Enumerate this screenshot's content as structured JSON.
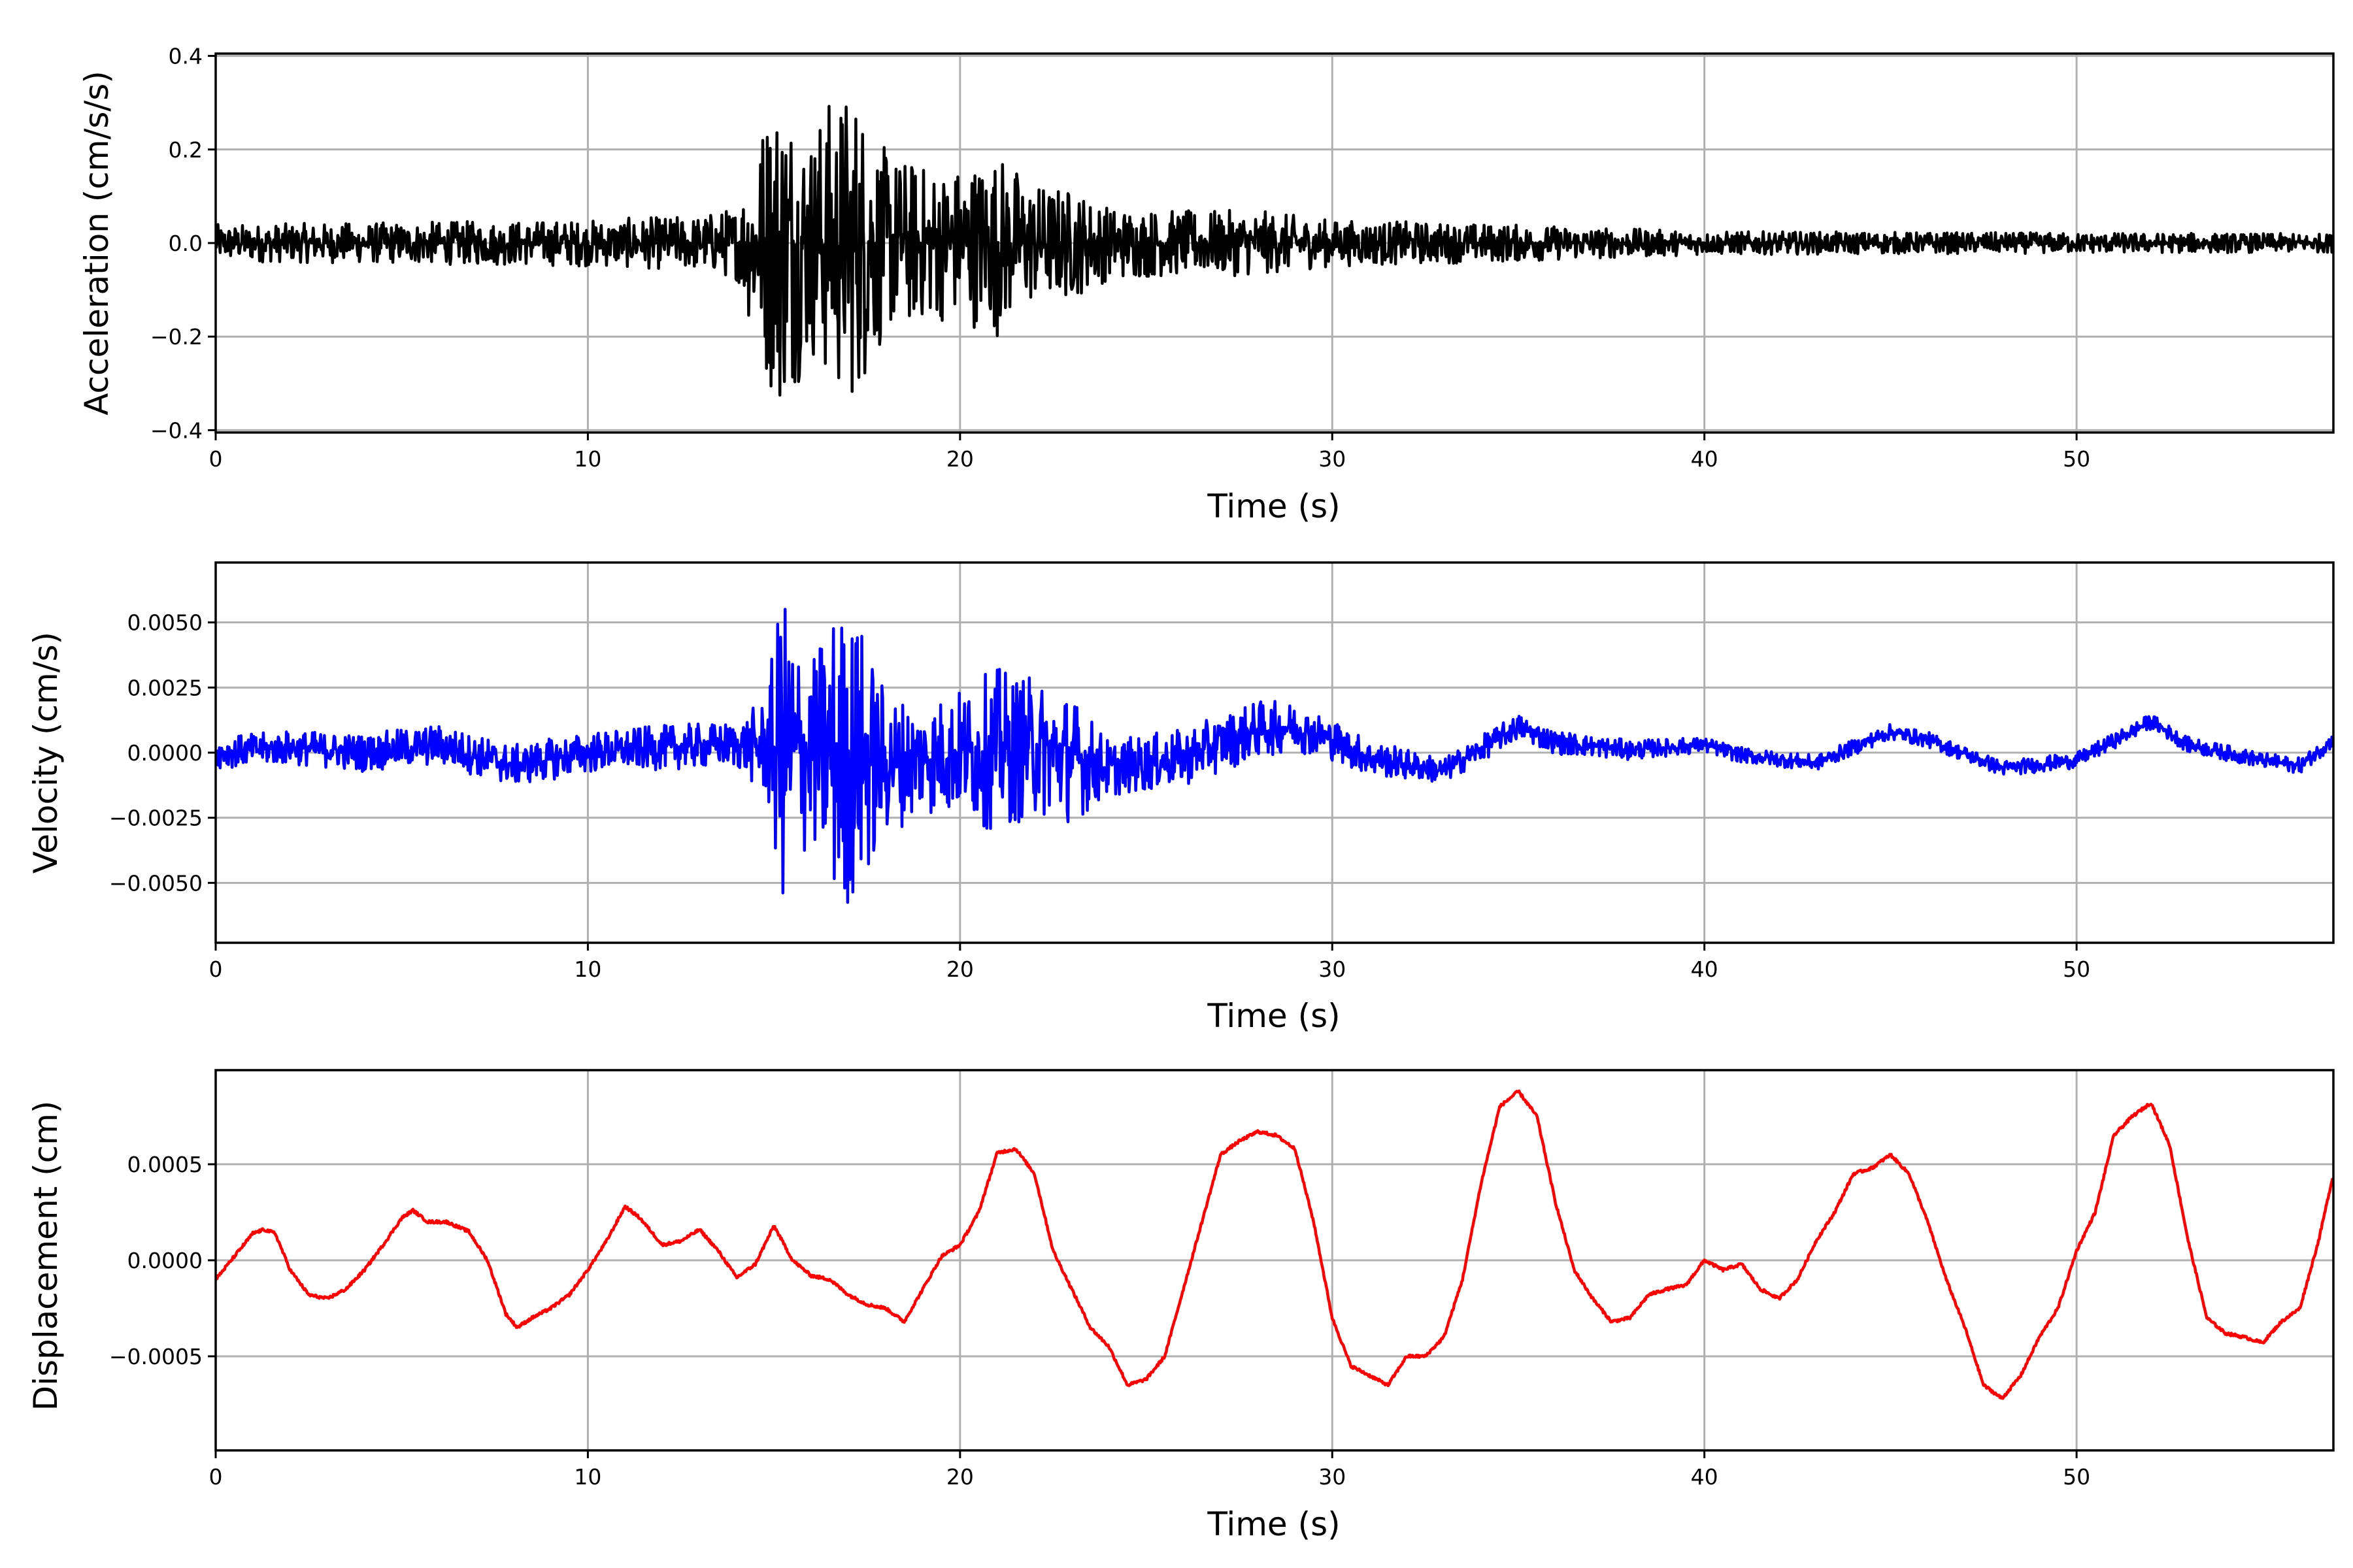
{
  "chart_data": [
    {
      "type": "line",
      "name": "acceleration",
      "xlabel": "Time (s)",
      "ylabel": "Acceleration (cm/s/s)",
      "xlim": [
        0,
        56.9
      ],
      "ylim": [
        -0.405,
        0.405
      ],
      "xticks": [
        0,
        10,
        20,
        30,
        40,
        50
      ],
      "xtick_labels": [
        "0",
        "10",
        "20",
        "30",
        "40",
        "50"
      ],
      "yticks": [
        -0.4,
        -0.2,
        0.0,
        0.2,
        0.4
      ],
      "ytick_labels": [
        "−0.4",
        "−0.2",
        "0.0",
        "0.2",
        "0.4"
      ],
      "grid": true,
      "color": "#000000",
      "envelope_t": [
        0,
        5,
        10,
        13,
        14,
        14.8,
        15.2,
        16,
        16.6,
        17.2,
        18,
        19,
        20,
        21,
        22,
        23,
        24,
        26,
        28,
        30,
        35,
        40,
        57
      ],
      "envelope_amp": [
        0.04,
        0.045,
        0.05,
        0.06,
        0.08,
        0.3,
        0.36,
        0.25,
        0.33,
        0.34,
        0.2,
        0.17,
        0.17,
        0.2,
        0.13,
        0.12,
        0.08,
        0.07,
        0.07,
        0.05,
        0.04,
        0.025,
        0.02
      ],
      "baseline_t": [
        0,
        57
      ],
      "baseline_v": [
        0,
        0
      ]
    },
    {
      "type": "line",
      "name": "velocity",
      "xlabel": "Time (s)",
      "ylabel": "Velocity (cm/s)",
      "xlim": [
        0,
        56.9
      ],
      "ylim": [
        -0.0073,
        0.0073
      ],
      "xticks": [
        0,
        10,
        20,
        30,
        40,
        50
      ],
      "xtick_labels": [
        "0",
        "10",
        "20",
        "30",
        "40",
        "50"
      ],
      "yticks": [
        -0.005,
        -0.0025,
        0.0,
        0.0025,
        0.005
      ],
      "ytick_labels": [
        "−0.0050",
        "−0.0025",
        "0.0000",
        "0.0025",
        "0.0050"
      ],
      "grid": true,
      "color": "#0000ff",
      "envelope_t": [
        0,
        6,
        10,
        14,
        14.8,
        15.2,
        16,
        16.6,
        17.2,
        18,
        19,
        20,
        21,
        22,
        23,
        24,
        28,
        30,
        33,
        35,
        40,
        57
      ],
      "envelope_amp": [
        0.0006,
        0.0008,
        0.0008,
        0.0009,
        0.002,
        0.0062,
        0.0035,
        0.0058,
        0.0058,
        0.0028,
        0.0022,
        0.0025,
        0.0032,
        0.0027,
        0.0025,
        0.0011,
        0.0011,
        0.0008,
        0.0005,
        0.0005,
        0.0003,
        0.0003
      ],
      "baseline_t": [
        0,
        2,
        4,
        6,
        8,
        10,
        12,
        14,
        16,
        18,
        20,
        22,
        24,
        26,
        28,
        29,
        30,
        31,
        33,
        35,
        36,
        38,
        40,
        41,
        43,
        45,
        46,
        48,
        50,
        52,
        53,
        55,
        56,
        57
      ],
      "baseline_v": [
        0,
        0.0002,
        0,
        0.0003,
        -0.0005,
        0,
        0.0002,
        0.0003,
        0,
        -0.0004,
        0,
        0.0002,
        -0.0006,
        -0.0002,
        0.0009,
        0.001,
        0.0005,
        -0.0002,
        -0.0007,
        0.001,
        0.0004,
        0.0001,
        0.0003,
        -0.0001,
        -0.0004,
        0.0008,
        0.0005,
        -0.0006,
        -0.0003,
        0.0012,
        0.0003,
        -0.0003,
        -0.0005,
        0.0006
      ]
    },
    {
      "type": "line",
      "name": "displacement",
      "xlabel": "Time (s)",
      "ylabel": "Displacement (cm)",
      "xlim": [
        0,
        56.9
      ],
      "ylim": [
        -0.00099,
        0.00099
      ],
      "xticks": [
        0,
        10,
        20,
        30,
        40,
        50
      ],
      "xtick_labels": [
        "0",
        "10",
        "20",
        "30",
        "40",
        "50"
      ],
      "yticks": [
        -0.0005,
        0.0,
        0.0005
      ],
      "ytick_labels": [
        "−0.0005",
        "0.0000",
        "0.0005"
      ],
      "grid": true,
      "color": "#ff0000",
      "t": [
        0,
        0.5,
        1,
        1.3,
        1.6,
        2,
        2.5,
        3,
        3.5,
        4,
        4.5,
        5,
        5.3,
        5.7,
        6.2,
        6.8,
        7.3,
        7.8,
        8.1,
        8.5,
        9,
        9.5,
        10,
        10.5,
        11,
        11.4,
        12,
        12.5,
        13,
        13.5,
        14,
        14.5,
        15,
        15.5,
        16,
        16.5,
        17,
        17.5,
        18,
        18.5,
        19,
        19.5,
        20,
        20.5,
        21,
        21.5,
        22,
        22.5,
        23,
        23.5,
        24,
        24.5,
        25,
        25.5,
        26,
        26.5,
        27,
        27.5,
        28,
        28.5,
        29,
        29.5,
        30,
        30.5,
        31,
        31.5,
        32,
        32.5,
        33,
        33.5,
        34,
        34.5,
        35,
        35.5,
        36,
        36.5,
        37,
        37.5,
        38,
        38.5,
        39,
        39.5,
        40,
        40.5,
        41,
        41.5,
        42,
        42.5,
        43,
        43.5,
        44,
        44.5,
        45,
        45.5,
        46,
        46.5,
        47,
        47.5,
        48,
        48.5,
        49,
        49.5,
        50,
        50.5,
        51,
        51.5,
        52,
        52.5,
        53,
        53.5,
        54,
        54.5,
        55,
        55.5,
        56,
        56.5,
        56.9
      ],
      "values_e4": [
        -1.0,
        0.2,
        1.4,
        1.6,
        1.4,
        -0.5,
        -1.8,
        -2.0,
        -1.5,
        -0.5,
        0.8,
        2.2,
        2.6,
        2.0,
        2.0,
        1.5,
        0.0,
        -2.8,
        -3.5,
        -3.0,
        -2.5,
        -1.8,
        -0.5,
        1.0,
        2.8,
        2.2,
        0.8,
        1.0,
        1.6,
        0.5,
        -0.9,
        -0.2,
        1.8,
        0.0,
        -0.8,
        -1.0,
        -1.8,
        -2.3,
        -2.5,
        -3.2,
        -1.5,
        0.2,
        0.8,
        2.5,
        5.6,
        5.8,
        4.5,
        0.5,
        -1.5,
        -3.5,
        -4.5,
        -6.5,
        -6.2,
        -5.0,
        -1.5,
        2.0,
        5.5,
        6.2,
        6.7,
        6.5,
        5.8,
        2.0,
        -3.0,
        -5.5,
        -6.0,
        -6.5,
        -5.0,
        -5.0,
        -4.0,
        -1.0,
        4.0,
        8.0,
        8.8,
        7.5,
        3.0,
        -0.5,
        -2.0,
        -3.2,
        -3.0,
        -1.8,
        -1.5,
        -1.3,
        0.0,
        -0.5,
        -0.2,
        -1.5,
        -2.0,
        -1.0,
        1.0,
        2.5,
        4.5,
        4.8,
        5.5,
        4.5,
        2.0,
        -1.0,
        -3.5,
        -6.5,
        -7.2,
        -6.0,
        -4.0,
        -2.5,
        0.5,
        2.5,
        6.5,
        7.5,
        8.2,
        6.0,
        1.0,
        -3.0,
        -3.8,
        -4.0,
        -4.3,
        -3.2,
        -2.5,
        1.0,
        4.5
      ],
      "values_scale": 0.0001
    }
  ]
}
